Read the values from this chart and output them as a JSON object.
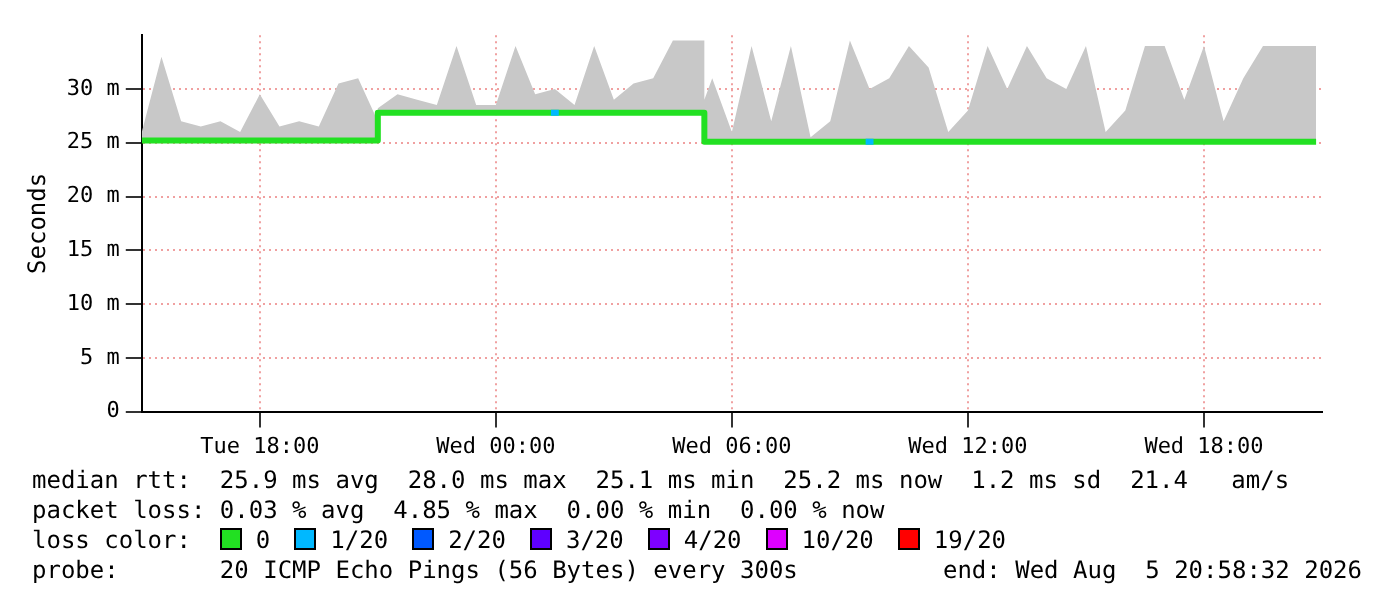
{
  "chart_data": {
    "type": "line",
    "ylabel": "Seconds",
    "xlim": [
      "2026-08-04T15:00",
      "2026-08-05T21:00"
    ],
    "xticks": [
      {
        "value": "2026-08-04T18:00",
        "label": "Tue 18:00"
      },
      {
        "value": "2026-08-05T00:00",
        "label": "Wed 00:00"
      },
      {
        "value": "2026-08-05T06:00",
        "label": "Wed 06:00"
      },
      {
        "value": "2026-08-05T12:00",
        "label": "Wed 12:00"
      },
      {
        "value": "2026-08-05T18:00",
        "label": "Wed 18:00"
      }
    ],
    "ylim": [
      0,
      35
    ],
    "yticks": [
      0,
      {
        "value": 5,
        "label": "5 m"
      },
      {
        "value": 10,
        "label": "10 m"
      },
      {
        "value": 15,
        "label": "15 m"
      },
      {
        "value": 20,
        "label": "20 m"
      },
      {
        "value": 25,
        "label": "25 m"
      },
      {
        "value": 30,
        "label": "30 m"
      }
    ],
    "grid": true,
    "legend": "bottom",
    "legend_title": "loss color:",
    "series": [
      {
        "name": "0",
        "color": "#22e022",
        "x": [
          "2026-08-04T15:00",
          "2026-08-04T15:30",
          "2026-08-04T16:00",
          "2026-08-04T16:30",
          "2026-08-04T17:00",
          "2026-08-04T17:30",
          "2026-08-04T18:00",
          "2026-08-04T18:30",
          "2026-08-04T19:00",
          "2026-08-04T19:30",
          "2026-08-04T20:00",
          "2026-08-04T20:30",
          "2026-08-04T21:00",
          "2026-08-04T21:00",
          "2026-08-04T21:30",
          "2026-08-04T22:00",
          "2026-08-04T22:30",
          "2026-08-04T23:00",
          "2026-08-04T23:30",
          "2026-08-05T00:00",
          "2026-08-05T00:30",
          "2026-08-05T01:00",
          "2026-08-05T01:30",
          "2026-08-05T02:00",
          "2026-08-05T02:30",
          "2026-08-05T03:00",
          "2026-08-05T03:30",
          "2026-08-05T04:00",
          "2026-08-05T04:30",
          "2026-08-05T05:00",
          "2026-08-05T05:18",
          "2026-08-05T05:18",
          "2026-08-05T05:30",
          "2026-08-05T06:00",
          "2026-08-05T06:30",
          "2026-08-05T07:00",
          "2026-08-05T07:30",
          "2026-08-05T08:00",
          "2026-08-05T08:30",
          "2026-08-05T09:00",
          "2026-08-05T09:30",
          "2026-08-05T10:00",
          "2026-08-05T10:30",
          "2026-08-05T11:00",
          "2026-08-05T11:30",
          "2026-08-05T12:00",
          "2026-08-05T12:30",
          "2026-08-05T13:00",
          "2026-08-05T13:30",
          "2026-08-05T14:00",
          "2026-08-05T14:30",
          "2026-08-05T15:00",
          "2026-08-05T15:30",
          "2026-08-05T16:00",
          "2026-08-05T16:30",
          "2026-08-05T17:00",
          "2026-08-05T17:30",
          "2026-08-05T18:00",
          "2026-08-05T18:30",
          "2026-08-05T19:00",
          "2026-08-05T19:30",
          "2026-08-05T20:00",
          "2026-08-05T20:30",
          "2026-08-05T20:51"
        ],
        "values": [
          25.2,
          25.2,
          25.2,
          25.2,
          25.2,
          25.2,
          25.2,
          25.2,
          25.2,
          25.2,
          25.2,
          25.2,
          25.2,
          27.8,
          27.8,
          27.8,
          27.8,
          27.8,
          27.8,
          27.8,
          27.8,
          27.8,
          27.8,
          27.8,
          27.8,
          27.8,
          27.8,
          27.8,
          27.8,
          27.8,
          27.8,
          25.1,
          25.1,
          25.1,
          25.1,
          25.1,
          25.1,
          25.1,
          25.1,
          25.1,
          25.1,
          25.1,
          25.1,
          25.1,
          25.1,
          25.1,
          25.1,
          25.1,
          25.1,
          25.1,
          25.1,
          25.1,
          25.1,
          25.1,
          25.1,
          25.1,
          25.1,
          25.1,
          25.1,
          25.1,
          25.1,
          25.1,
          25.1,
          25.1
        ],
        "lower": [
          25.2,
          25.2,
          25.2,
          25.2,
          25.2,
          25.2,
          25.2,
          25.2,
          25.2,
          25.2,
          25.2,
          25.2,
          25.2,
          27.8,
          27.8,
          27.8,
          27.8,
          27.8,
          27.8,
          27.8,
          27.8,
          27.8,
          27.8,
          27.8,
          27.8,
          27.8,
          27.8,
          27.8,
          27.8,
          27.8,
          27.8,
          25.1,
          25.1,
          25.1,
          25.1,
          25.1,
          25.1,
          25.1,
          25.1,
          25.1,
          25.1,
          25.1,
          25.1,
          25.1,
          25.1,
          25.1,
          25.1,
          25.1,
          25.1,
          25.1,
          25.1,
          25.1,
          25.1,
          25.1,
          25.1,
          25.1,
          25.1,
          25.1,
          25.1,
          25.1,
          25.1,
          25.1,
          25.1,
          25.1
        ],
        "upper": [
          26,
          33,
          27,
          26.5,
          27,
          26,
          29.5,
          26.5,
          27,
          26.5,
          30.5,
          31,
          27,
          28.2,
          29.5,
          29,
          28.5,
          34,
          28.5,
          28.5,
          34,
          29.5,
          30,
          28.5,
          34,
          29,
          30.5,
          31,
          34.5,
          34.5,
          34.5,
          29,
          31,
          26,
          34,
          27,
          34,
          25.5,
          27,
          34.5,
          30,
          31,
          34,
          32,
          26,
          28,
          34,
          30,
          34,
          31,
          30,
          34,
          26,
          28,
          34,
          34,
          29,
          34,
          27,
          31,
          34,
          34,
          34,
          34
        ]
      },
      {
        "name": "1/20",
        "color": "#00b8ff",
        "x": [
          "2026-08-05T01:24",
          "2026-08-05T01:36",
          "2026-08-05T01:42",
          "2026-08-05T09:24",
          "2026-08-05T09:36"
        ],
        "values": [
          27.8,
          27.8,
          null,
          25.1,
          25.1
        ]
      },
      {
        "name": "2/20",
        "color": "#0059ff"
      },
      {
        "name": "3/20",
        "color": "#5e00ff"
      },
      {
        "name": "4/20",
        "color": "#7e00ff"
      },
      {
        "name": "10/20",
        "color": "#dd00ff"
      },
      {
        "name": "19/20",
        "color": "#ff0000"
      }
    ],
    "annotations": [
      "median rtt:  25.9 ms avg  28.0 ms max  25.1 ms min  25.2 ms now  1.2 ms sd  21.4   am/s",
      "packet loss: 0.03 % avg  4.85 % max  0.00 % min  0.00 % now",
      "probe:       20 ICMP Echo Pings (56 Bytes) every 300s",
      "end: Wed Aug  5 20:58:32 2026"
    ]
  }
}
